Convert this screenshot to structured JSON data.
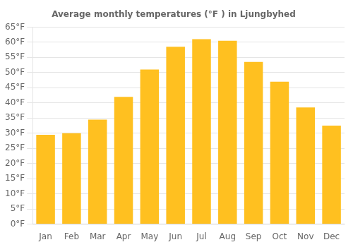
{
  "chart_data": {
    "type": "bar",
    "title": "Average monthly temperatures (°F ) in Ljungbyhed",
    "categories": [
      "Jan",
      "Feb",
      "Mar",
      "Apr",
      "May",
      "Jun",
      "Jul",
      "Aug",
      "Sep",
      "Oct",
      "Nov",
      "Dec"
    ],
    "values": [
      29.5,
      30.0,
      34.5,
      42.0,
      51.0,
      58.5,
      61.0,
      60.5,
      53.5,
      47.0,
      38.5,
      32.5
    ],
    "color": "#FFC020",
    "ylim": [
      0,
      65
    ],
    "yticks": [
      {
        "value": 0,
        "label": "0°F"
      },
      {
        "value": 5,
        "label": "5°F"
      },
      {
        "value": 10,
        "label": "10°F"
      },
      {
        "value": 15,
        "label": "15°F"
      },
      {
        "value": 20,
        "label": "20°F"
      },
      {
        "value": 25,
        "label": "25°F"
      },
      {
        "value": 30,
        "label": "30°F"
      },
      {
        "value": 35,
        "label": "35°F"
      },
      {
        "value": 40,
        "label": "40°F"
      },
      {
        "value": 45,
        "label": "45°F"
      },
      {
        "value": 50,
        "label": "50°F"
      },
      {
        "value": 55,
        "label": "55°F"
      },
      {
        "value": 60,
        "label": "60°F"
      },
      {
        "value": 65,
        "label": "65°F"
      }
    ],
    "grid": true
  }
}
